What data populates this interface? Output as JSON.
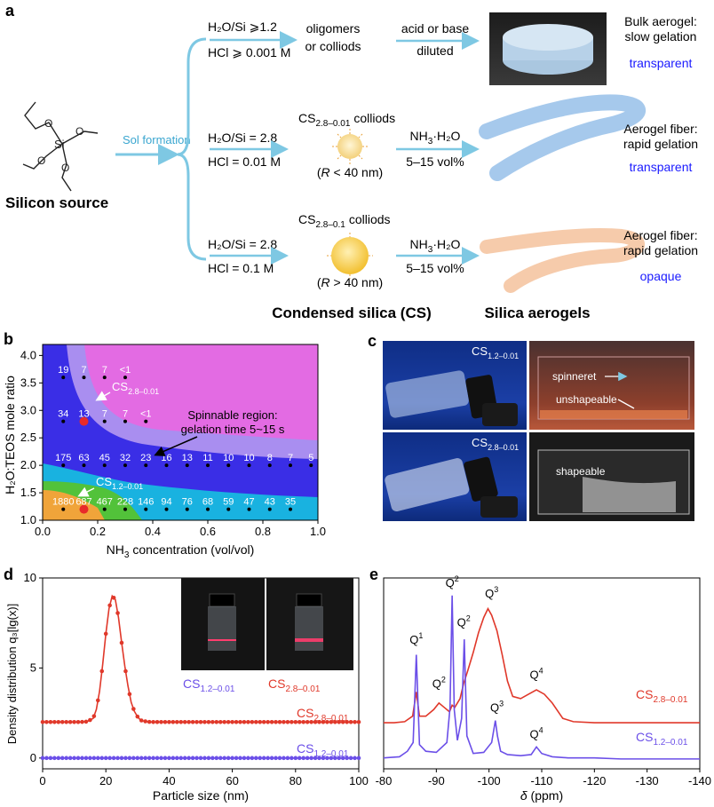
{
  "panel_a": {
    "label": "a",
    "silicon_source": "Silicon source",
    "si": "Si",
    "sol_formation": "Sol formation",
    "route1": {
      "cond1": "H₂O/Si ⩾1.2",
      "cond2": "HCl ⩾ 0.001 M",
      "product1": "oligomers",
      "product2": "or colliods",
      "step1": "acid or base",
      "step2": "diluted",
      "result1": "Bulk aerogel:",
      "result2": "slow gelation",
      "optical": "transparent"
    },
    "route2": {
      "cond1": "H₂O/Si = 2.8",
      "cond2": "HCl = 0.01 M",
      "cs_main": "CS",
      "cs_sub": "2.8–0.01",
      "cs_suffix": "colliods",
      "size_pre": "(",
      "size_var": "R",
      "size_post": " < 40 nm)",
      "reagent_main": "NH",
      "reagent_sub": "3",
      "reagent_suffix": "·H₂O",
      "vol": "5–15 vol%",
      "result1": "Aerogel fiber:",
      "result2": "rapid gelation",
      "optical": "transparent"
    },
    "route3": {
      "cond1": "H₂O/Si = 2.8",
      "cond2": "HCl = 0.1 M",
      "cs_main": "CS",
      "cs_sub": "2.8–0.1",
      "cs_suffix": "colliods",
      "size_pre": "(",
      "size_var": "R",
      "size_post": " > 40 nm)",
      "reagent_main": "NH",
      "reagent_sub": "3",
      "reagent_suffix": "·H₂O",
      "vol": "5–15 vol%",
      "result1": "Aerogel fiber:",
      "result2": "rapid gelation",
      "optical": "opaque"
    },
    "footer_cs": "Condensed silica (CS)",
    "footer_aerogels": "Silica aerogels",
    "colors": {
      "arrow": "#7ec8e3",
      "brace": "#7ec8e3",
      "optical": "#1a1aff",
      "bulk": "#c6dcef",
      "fiber_blue": "#9cc3ea",
      "fiber_orange": "#f6c8a6",
      "colloid_small": "#f3d07a",
      "colloid_large": "#f2c53d"
    }
  },
  "panel_b": {
    "label": "b",
    "ylabel_main": "H₂O:TEOS mole ratio",
    "xlabel_main": "NH",
    "xlabel_sub": "3",
    "xlabel_suffix": " concentration (vol/vol)",
    "xticks": [
      "0.0",
      "0.2",
      "0.4",
      "0.6",
      "0.8",
      "1.0"
    ],
    "yticks": [
      "1.0",
      "1.5",
      "2.0",
      "2.5",
      "3.0",
      "3.5",
      "4.0"
    ],
    "annotation1": "Spinnable region:",
    "annotation2": "gelation time 5~15 s",
    "cs_a_main": "CS",
    "cs_a_sub": "2.8–0.01",
    "cs_b_main": "CS",
    "cs_b_sub": "1.2–0.01",
    "colors": {
      "magenta": "#e36be3",
      "violet": "#a98ef0",
      "blue": "#3a2ee6",
      "cyan": "#19b2e0",
      "green": "#52c23a",
      "orange": "#f0a43a",
      "red": "#e82a2a"
    }
  },
  "panel_b_chart": {
    "type": "scatter",
    "xlim": [
      0.0,
      1.0
    ],
    "ylim": [
      1.0,
      4.2
    ],
    "rows": [
      {
        "y": 3.6,
        "points": [
          [
            0.075,
            "19"
          ],
          [
            0.15,
            "7"
          ],
          [
            0.225,
            "7"
          ],
          [
            0.3,
            "<1"
          ]
        ]
      },
      {
        "y": 2.8,
        "points": [
          [
            0.075,
            "34"
          ],
          [
            0.15,
            "13"
          ],
          [
            0.225,
            "7"
          ],
          [
            0.3,
            "7"
          ],
          [
            0.375,
            "<1"
          ]
        ]
      },
      {
        "y": 2.0,
        "points": [
          [
            0.075,
            "175"
          ],
          [
            0.15,
            "63"
          ],
          [
            0.225,
            "45"
          ],
          [
            0.3,
            "32"
          ],
          [
            0.375,
            "23"
          ],
          [
            0.45,
            "16"
          ],
          [
            0.525,
            "13"
          ],
          [
            0.6,
            "11"
          ],
          [
            0.675,
            "10"
          ],
          [
            0.75,
            "10"
          ],
          [
            0.825,
            "8"
          ],
          [
            0.9,
            "7"
          ],
          [
            0.975,
            "5"
          ]
        ]
      },
      {
        "y": 1.2,
        "points": [
          [
            0.075,
            "1880"
          ],
          [
            0.15,
            "687"
          ],
          [
            0.225,
            "467"
          ],
          [
            0.3,
            "228"
          ],
          [
            0.375,
            "146"
          ],
          [
            0.45,
            "94"
          ],
          [
            0.525,
            "76"
          ],
          [
            0.6,
            "68"
          ],
          [
            0.675,
            "59"
          ],
          [
            0.75,
            "47"
          ],
          [
            0.825,
            "43"
          ],
          [
            0.9,
            "35"
          ]
        ]
      }
    ],
    "highlighted": [
      [
        0.15,
        2.8
      ],
      [
        0.15,
        1.2
      ]
    ]
  },
  "panel_c": {
    "label": "c",
    "top_cs_main": "CS",
    "top_cs_sub": "1.2–0.01",
    "bottom_cs_main": "CS",
    "bottom_cs_sub": "2.8–0.01",
    "spinneret": "spinneret",
    "unshapeable": "unshapeable",
    "shapeable": "shapeable"
  },
  "panel_d": {
    "label": "d",
    "ylabel": "Density distribution q₃[lg(x)]",
    "xlabel": "Particle size (nm)",
    "xticks": [
      "0",
      "20",
      "40",
      "60",
      "80",
      "100"
    ],
    "yticks": [
      "0",
      "5",
      "10"
    ],
    "legend_red_main": "CS",
    "legend_red_sub": "2.8–0.01",
    "legend_blue_main": "CS",
    "legend_blue_sub": "1.2–0.01",
    "inset_blue_main": "CS",
    "inset_blue_sub": "1.2–0.01",
    "inset_red_main": "CS",
    "inset_red_sub": "2.8–0.01",
    "colors": {
      "red": "#e0382a",
      "blue": "#6b4fe8"
    }
  },
  "panel_d_chart": {
    "type": "line",
    "xlim": [
      0,
      100
    ],
    "ylim": [
      -0.6,
      10
    ],
    "series": [
      {
        "name": "CS 2.8–0.01",
        "x": [
          0,
          2,
          4,
          6,
          8,
          10,
          12,
          14,
          16,
          17,
          18,
          19,
          20,
          21,
          22,
          23,
          24,
          25,
          26,
          27,
          28,
          29,
          30,
          31,
          32,
          34,
          36,
          38,
          40,
          45,
          50,
          55,
          60,
          65,
          70,
          75,
          80,
          85,
          90,
          95,
          100
        ],
        "y": [
          2.0,
          2.0,
          2.0,
          2.0,
          2.0,
          2.0,
          2.0,
          2.02,
          2.2,
          2.7,
          3.7,
          5.2,
          6.9,
          8.3,
          9.0,
          8.8,
          7.8,
          6.4,
          5.1,
          4.0,
          3.1,
          2.6,
          2.3,
          2.1,
          2.05,
          2.0,
          2.0,
          2.0,
          2.0,
          2.0,
          2.0,
          2.0,
          2.0,
          2.0,
          2.0,
          2.0,
          2.0,
          2.0,
          2.0,
          2.0,
          2.0
        ]
      },
      {
        "name": "CS 1.2–0.01",
        "x": [
          0,
          10,
          20,
          30,
          40,
          50,
          60,
          70,
          80,
          90,
          100
        ],
        "y": [
          0,
          0,
          0,
          0,
          0,
          0,
          0,
          0,
          0,
          0,
          0
        ]
      }
    ]
  },
  "panel_e": {
    "label": "e",
    "xlabel_var": "δ",
    "xlabel_suffix": " (ppm)",
    "xticks": [
      "-80",
      "-90",
      "-100",
      "-110",
      "-120",
      "-130",
      "-140"
    ],
    "legend_red_main": "CS",
    "legend_red_sub": "2.8–0.01",
    "legend_blue_main": "CS",
    "legend_blue_sub": "1.2–0.01",
    "peaks": [
      {
        "main": "Q",
        "sup": "1"
      },
      {
        "main": "Q",
        "sup": "2"
      },
      {
        "main": "Q",
        "sup": "2"
      },
      {
        "main": "Q",
        "sup": "2"
      },
      {
        "main": "Q",
        "sup": "3"
      },
      {
        "main": "Q",
        "sup": "4"
      },
      {
        "main": "Q",
        "sup": "3"
      },
      {
        "main": "Q",
        "sup": "4"
      }
    ]
  },
  "panel_e_chart": {
    "type": "line",
    "xlim": [
      -80,
      -140
    ],
    "ylim": [
      -0.3,
      8.4
    ],
    "series": [
      {
        "name": "CS 2.8–0.01",
        "x": [
          -80,
          -82,
          -84,
          -85.5,
          -86.2,
          -86.8,
          -88,
          -89.5,
          -90.5,
          -91.5,
          -92.5,
          -93,
          -93.5,
          -94.5,
          -95.2,
          -96,
          -97,
          -98,
          -99,
          -99.8,
          -100.5,
          -101.5,
          -102.5,
          -103.5,
          -104.5,
          -106,
          -107.5,
          -109,
          -110.5,
          -112,
          -114,
          -116,
          -120,
          -125,
          -130,
          -135,
          -140
        ],
        "y": [
          1.8,
          1.8,
          1.85,
          2.1,
          3.2,
          2.1,
          2.1,
          2.4,
          2.7,
          2.5,
          2.3,
          2.6,
          2.5,
          2.9,
          3.6,
          4.2,
          5.0,
          5.9,
          6.6,
          7.0,
          6.7,
          6.0,
          4.9,
          3.7,
          3.0,
          2.9,
          3.1,
          3.3,
          3.1,
          2.7,
          2.0,
          1.85,
          1.8,
          1.8,
          1.8,
          1.8,
          1.8
        ]
      },
      {
        "name": "CS 1.2–0.01",
        "x": [
          -80,
          -83,
          -84.5,
          -85.6,
          -86.2,
          -86.8,
          -88,
          -90,
          -92,
          -92.6,
          -93,
          -93.4,
          -94,
          -94.8,
          -95.3,
          -95.8,
          -97,
          -99,
          -100.5,
          -101.2,
          -101.6,
          -102.2,
          -103.5,
          -106,
          -108,
          -109,
          -110,
          -112,
          -115,
          -120,
          -125,
          -130,
          -135,
          -140
        ],
        "y": [
          0.2,
          0.25,
          0.5,
          0.9,
          4.9,
          0.8,
          0.5,
          0.45,
          0.9,
          2.5,
          7.6,
          2.4,
          1.0,
          2.0,
          5.6,
          1.2,
          0.4,
          0.45,
          0.9,
          1.9,
          1.2,
          0.5,
          0.35,
          0.3,
          0.35,
          0.7,
          0.4,
          0.25,
          0.2,
          0.2,
          0.15,
          0.15,
          0.15,
          0.15
        ]
      }
    ]
  }
}
